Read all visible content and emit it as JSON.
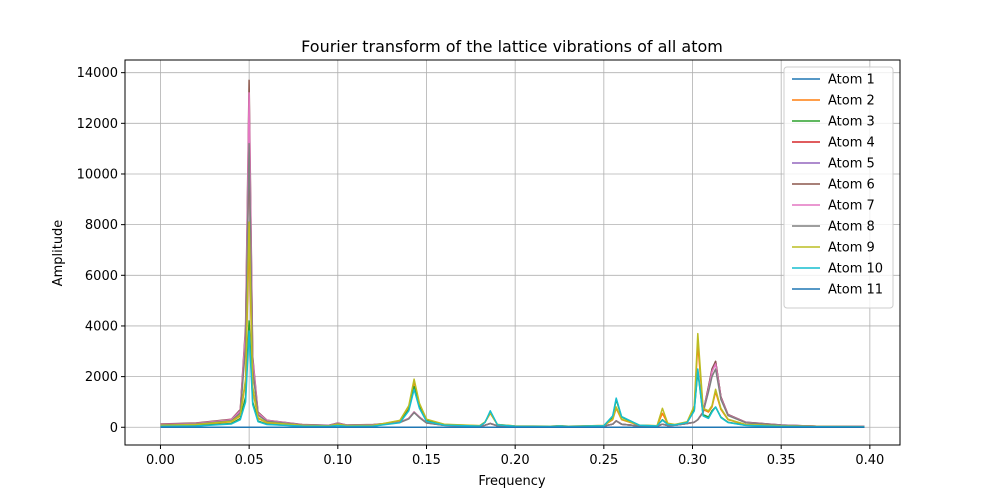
{
  "chart_data": {
    "type": "line",
    "title": "Fourier transform of the lattice vibrations of all atom",
    "xlabel": "Frequency",
    "ylabel": "Amplitude",
    "xlim": [
      -0.02,
      0.417
    ],
    "ylim": [
      -700,
      14500
    ],
    "xticks": [
      0.0,
      0.05,
      0.1,
      0.15,
      0.2,
      0.25,
      0.3,
      0.35,
      0.4
    ],
    "xtick_labels": [
      "0.00",
      "0.05",
      "0.10",
      "0.15",
      "0.20",
      "0.25",
      "0.30",
      "0.35",
      "0.40"
    ],
    "yticks": [
      0,
      2000,
      4000,
      6000,
      8000,
      10000,
      12000,
      14000
    ],
    "ytick_labels": [
      "0",
      "2000",
      "4000",
      "6000",
      "8000",
      "10000",
      "12000",
      "14000"
    ],
    "grid": true,
    "legend_position": "top-right",
    "x": [
      0.0,
      0.02,
      0.04,
      0.045,
      0.048,
      0.05,
      0.052,
      0.055,
      0.06,
      0.08,
      0.095,
      0.1,
      0.105,
      0.12,
      0.135,
      0.14,
      0.143,
      0.146,
      0.15,
      0.16,
      0.18,
      0.183,
      0.186,
      0.19,
      0.2,
      0.22,
      0.225,
      0.23,
      0.25,
      0.255,
      0.257,
      0.26,
      0.27,
      0.28,
      0.283,
      0.286,
      0.29,
      0.297,
      0.301,
      0.303,
      0.306,
      0.309,
      0.311,
      0.313,
      0.316,
      0.32,
      0.33,
      0.35,
      0.37,
      0.397
    ],
    "series": [
      {
        "name": "Atom 1",
        "color": "#1f77b4",
        "values": [
          0,
          0,
          0,
          0,
          0,
          0,
          0,
          0,
          0,
          0,
          0,
          0,
          0,
          0,
          0,
          0,
          0,
          0,
          0,
          0,
          0,
          0,
          0,
          0,
          0,
          0,
          0,
          0,
          0,
          0,
          0,
          0,
          0,
          0,
          0,
          0,
          0,
          0,
          0,
          0,
          0,
          0,
          0,
          0,
          0,
          0,
          0,
          0,
          0,
          0
        ]
      },
      {
        "name": "Atom 2",
        "color": "#ff7f0e",
        "values": [
          70,
          100,
          220,
          450,
          1800,
          7500,
          1500,
          350,
          180,
          70,
          50,
          110,
          60,
          70,
          260,
          800,
          1800,
          900,
          300,
          110,
          60,
          200,
          550,
          110,
          50,
          40,
          60,
          40,
          70,
          300,
          750,
          300,
          80,
          60,
          550,
          150,
          100,
          200,
          800,
          3300,
          700,
          600,
          800,
          1400,
          700,
          300,
          100,
          50,
          30,
          20
        ]
      },
      {
        "name": "Atom 3",
        "color": "#2ca02c",
        "values": [
          40,
          60,
          150,
          350,
          1200,
          4200,
          1000,
          250,
          120,
          50,
          40,
          80,
          40,
          50,
          200,
          700,
          1600,
          800,
          250,
          90,
          50,
          200,
          600,
          100,
          40,
          30,
          50,
          30,
          60,
          400,
          1100,
          400,
          80,
          50,
          300,
          120,
          100,
          200,
          700,
          2200,
          500,
          400,
          650,
          800,
          400,
          200,
          80,
          40,
          20,
          15
        ]
      },
      {
        "name": "Atom 4",
        "color": "#d62728",
        "values": [
          100,
          140,
          280,
          600,
          3500,
          11000,
          2400,
          500,
          250,
          90,
          70,
          150,
          80,
          90,
          200,
          350,
          600,
          400,
          180,
          80,
          50,
          80,
          150,
          60,
          40,
          30,
          50,
          30,
          50,
          120,
          250,
          120,
          50,
          40,
          120,
          70,
          80,
          150,
          200,
          300,
          600,
          1500,
          2200,
          2600,
          1200,
          500,
          180,
          80,
          40,
          30
        ]
      },
      {
        "name": "Atom 5",
        "color": "#9467bd",
        "values": [
          120,
          160,
          300,
          650,
          3800,
          12500,
          2600,
          550,
          270,
          100,
          70,
          160,
          80,
          100,
          200,
          350,
          600,
          400,
          180,
          80,
          50,
          80,
          150,
          60,
          40,
          30,
          50,
          30,
          50,
          120,
          250,
          120,
          50,
          40,
          120,
          70,
          80,
          150,
          200,
          300,
          600,
          1600,
          2300,
          2600,
          1200,
          500,
          200,
          90,
          40,
          30
        ]
      },
      {
        "name": "Atom 6",
        "color": "#8c564b",
        "values": [
          130,
          170,
          320,
          700,
          4000,
          13700,
          2800,
          600,
          280,
          110,
          80,
          170,
          90,
          110,
          200,
          350,
          600,
          400,
          180,
          80,
          50,
          80,
          150,
          60,
          40,
          30,
          50,
          30,
          50,
          120,
          250,
          120,
          50,
          40,
          120,
          70,
          80,
          150,
          200,
          300,
          600,
          1600,
          2300,
          2600,
          1200,
          500,
          200,
          90,
          40,
          30
        ]
      },
      {
        "name": "Atom 7",
        "color": "#e377c2",
        "values": [
          110,
          150,
          300,
          650,
          3800,
          13200,
          2700,
          560,
          270,
          100,
          75,
          160,
          85,
          100,
          200,
          350,
          600,
          400,
          180,
          80,
          50,
          80,
          150,
          60,
          40,
          30,
          50,
          30,
          50,
          120,
          250,
          120,
          50,
          40,
          120,
          70,
          80,
          150,
          200,
          300,
          600,
          1500,
          2200,
          2500,
          1150,
          480,
          190,
          85,
          40,
          30
        ]
      },
      {
        "name": "Atom 8",
        "color": "#7f7f7f",
        "values": [
          90,
          130,
          260,
          560,
          3200,
          11200,
          2300,
          480,
          240,
          90,
          65,
          140,
          75,
          90,
          190,
          330,
          580,
          380,
          170,
          75,
          50,
          80,
          150,
          60,
          40,
          30,
          50,
          30,
          50,
          120,
          250,
          120,
          50,
          40,
          120,
          70,
          80,
          150,
          200,
          300,
          580,
          1400,
          2000,
          2300,
          1100,
          460,
          180,
          80,
          40,
          30
        ]
      },
      {
        "name": "Atom 9",
        "color": "#bcbd22",
        "values": [
          75,
          110,
          230,
          480,
          1900,
          8100,
          1600,
          380,
          190,
          75,
          55,
          120,
          65,
          75,
          270,
          850,
          1900,
          950,
          320,
          120,
          65,
          210,
          560,
          110,
          50,
          40,
          60,
          40,
          70,
          320,
          800,
          320,
          85,
          60,
          750,
          160,
          110,
          220,
          850,
          3700,
          750,
          650,
          850,
          1500,
          750,
          320,
          110,
          55,
          30,
          20
        ]
      },
      {
        "name": "Atom 10",
        "color": "#17becf",
        "values": [
          35,
          50,
          130,
          300,
          1000,
          3800,
          900,
          220,
          110,
          45,
          35,
          70,
          35,
          45,
          180,
          650,
          1500,
          750,
          230,
          85,
          45,
          190,
          650,
          100,
          40,
          30,
          50,
          30,
          60,
          450,
          1150,
          420,
          80,
          50,
          280,
          110,
          90,
          190,
          650,
          2300,
          450,
          350,
          600,
          800,
          380,
          190,
          75,
          35,
          20,
          15
        ]
      },
      {
        "name": "Atom 11",
        "color": "#1f77b4",
        "values": [
          0,
          0,
          0,
          0,
          0,
          0,
          0,
          0,
          0,
          0,
          0,
          0,
          0,
          0,
          0,
          0,
          0,
          0,
          0,
          0,
          0,
          0,
          0,
          0,
          0,
          0,
          0,
          0,
          0,
          0,
          0,
          0,
          0,
          0,
          0,
          0,
          0,
          0,
          0,
          0,
          0,
          0,
          0,
          0,
          0,
          0,
          0,
          0,
          0,
          0
        ]
      }
    ]
  }
}
